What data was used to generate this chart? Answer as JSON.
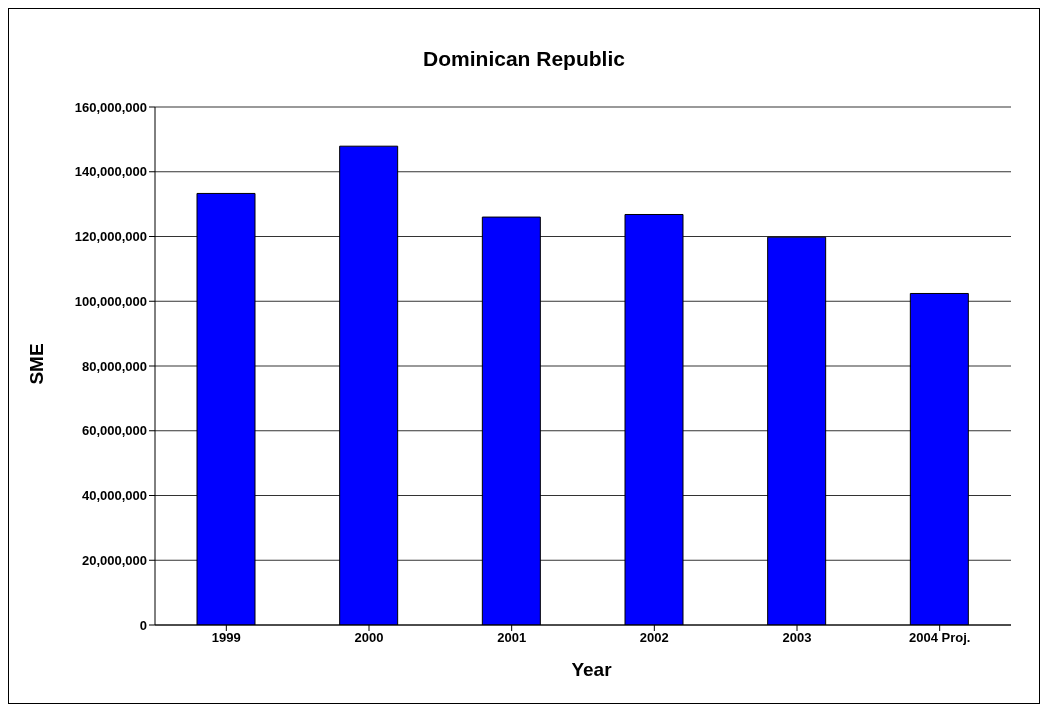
{
  "chart_data": {
    "type": "bar",
    "title": "Dominican Republic",
    "xlabel": "Year",
    "ylabel": "SME",
    "categories": [
      "1999",
      "2000",
      "2001",
      "2002",
      "2003",
      "2004 Proj."
    ],
    "values": [
      133300000,
      147900000,
      126000000,
      126800000,
      119800000,
      102400000
    ],
    "color": "#0000ff",
    "ylim": [
      0,
      160000000
    ],
    "yticks": [
      {
        "value": 0,
        "label": "0"
      },
      {
        "value": 20000000,
        "label": "20,000,000"
      },
      {
        "value": 40000000,
        "label": "40,000,000"
      },
      {
        "value": 60000000,
        "label": "60,000,000"
      },
      {
        "value": 80000000,
        "label": "80,000,000"
      },
      {
        "value": 100000000,
        "label": "100,000,000"
      },
      {
        "value": 120000000,
        "label": "120,000,000"
      },
      {
        "value": 140000000,
        "label": "140,000,000"
      },
      {
        "value": 160000000,
        "label": "160,000,000"
      }
    ],
    "grid": "y",
    "legend": false
  }
}
